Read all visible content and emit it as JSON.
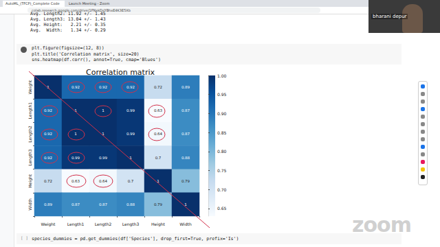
{
  "browser": {
    "tabs": [
      "AutoML_(TFCP)_Complete Code",
      "Launch Meeting - Zoom"
    ],
    "url": "colab.research.google.com/drive/1FNxkDsYBhxE4K3E5Xb"
  },
  "output_lines": [
    "Avg. Length2: 11.92 +/- 1.45",
    "Avg. Length3: 13.04 +/- 1.43",
    "Avg. Height:   2.21 +/- 0.35",
    "Avg.  Width:   1.34 +/- 0.29"
  ],
  "code_cell": [
    "plt.figure(figsize=(12, 8))",
    "plt.title('Correlation matrix', size=20)",
    "sns.heatmap(df.corr(), annot=True, cmap='Blues')"
  ],
  "next_code_cell": "species_dummies = pd.get_dummies(df['Species'], drop_first=True, prefix='Is')",
  "next_code_cell_prompt": "[ ]",
  "zoom": {
    "participant": "bharani depur",
    "logo": "zoom"
  },
  "chart_data": {
    "type": "heatmap",
    "title": "Correlation matrix",
    "x": [
      "Weight",
      "Length1",
      "Length2",
      "Length3",
      "Height",
      "Width"
    ],
    "y": [
      "Weight",
      "Length1",
      "Length2",
      "Length3",
      "Height",
      "Width"
    ],
    "cells": [
      [
        1,
        0.92,
        0.92,
        0.92,
        0.72,
        0.89
      ],
      [
        0.92,
        1,
        1,
        0.99,
        0.63,
        0.87
      ],
      [
        0.92,
        1,
        1,
        0.99,
        0.64,
        0.87
      ],
      [
        0.92,
        0.99,
        0.99,
        1,
        0.7,
        0.88
      ],
      [
        0.72,
        0.63,
        0.64,
        0.7,
        1,
        0.79
      ],
      [
        0.89,
        0.87,
        0.87,
        0.88,
        0.79,
        1
      ]
    ],
    "colorbar": {
      "range": [
        0.63,
        1
      ],
      "ticks": [
        0.65,
        {
          "value": 0.7,
          "label": "0.70"
        },
        0.75,
        {
          "value": 0.8,
          "label": "0.80"
        },
        0.85,
        {
          "value": 0.9,
          "label": "0.90"
        },
        0.95,
        {
          "value": 1,
          "label": "1.00"
        }
      ]
    },
    "data_labels": true
  }
}
